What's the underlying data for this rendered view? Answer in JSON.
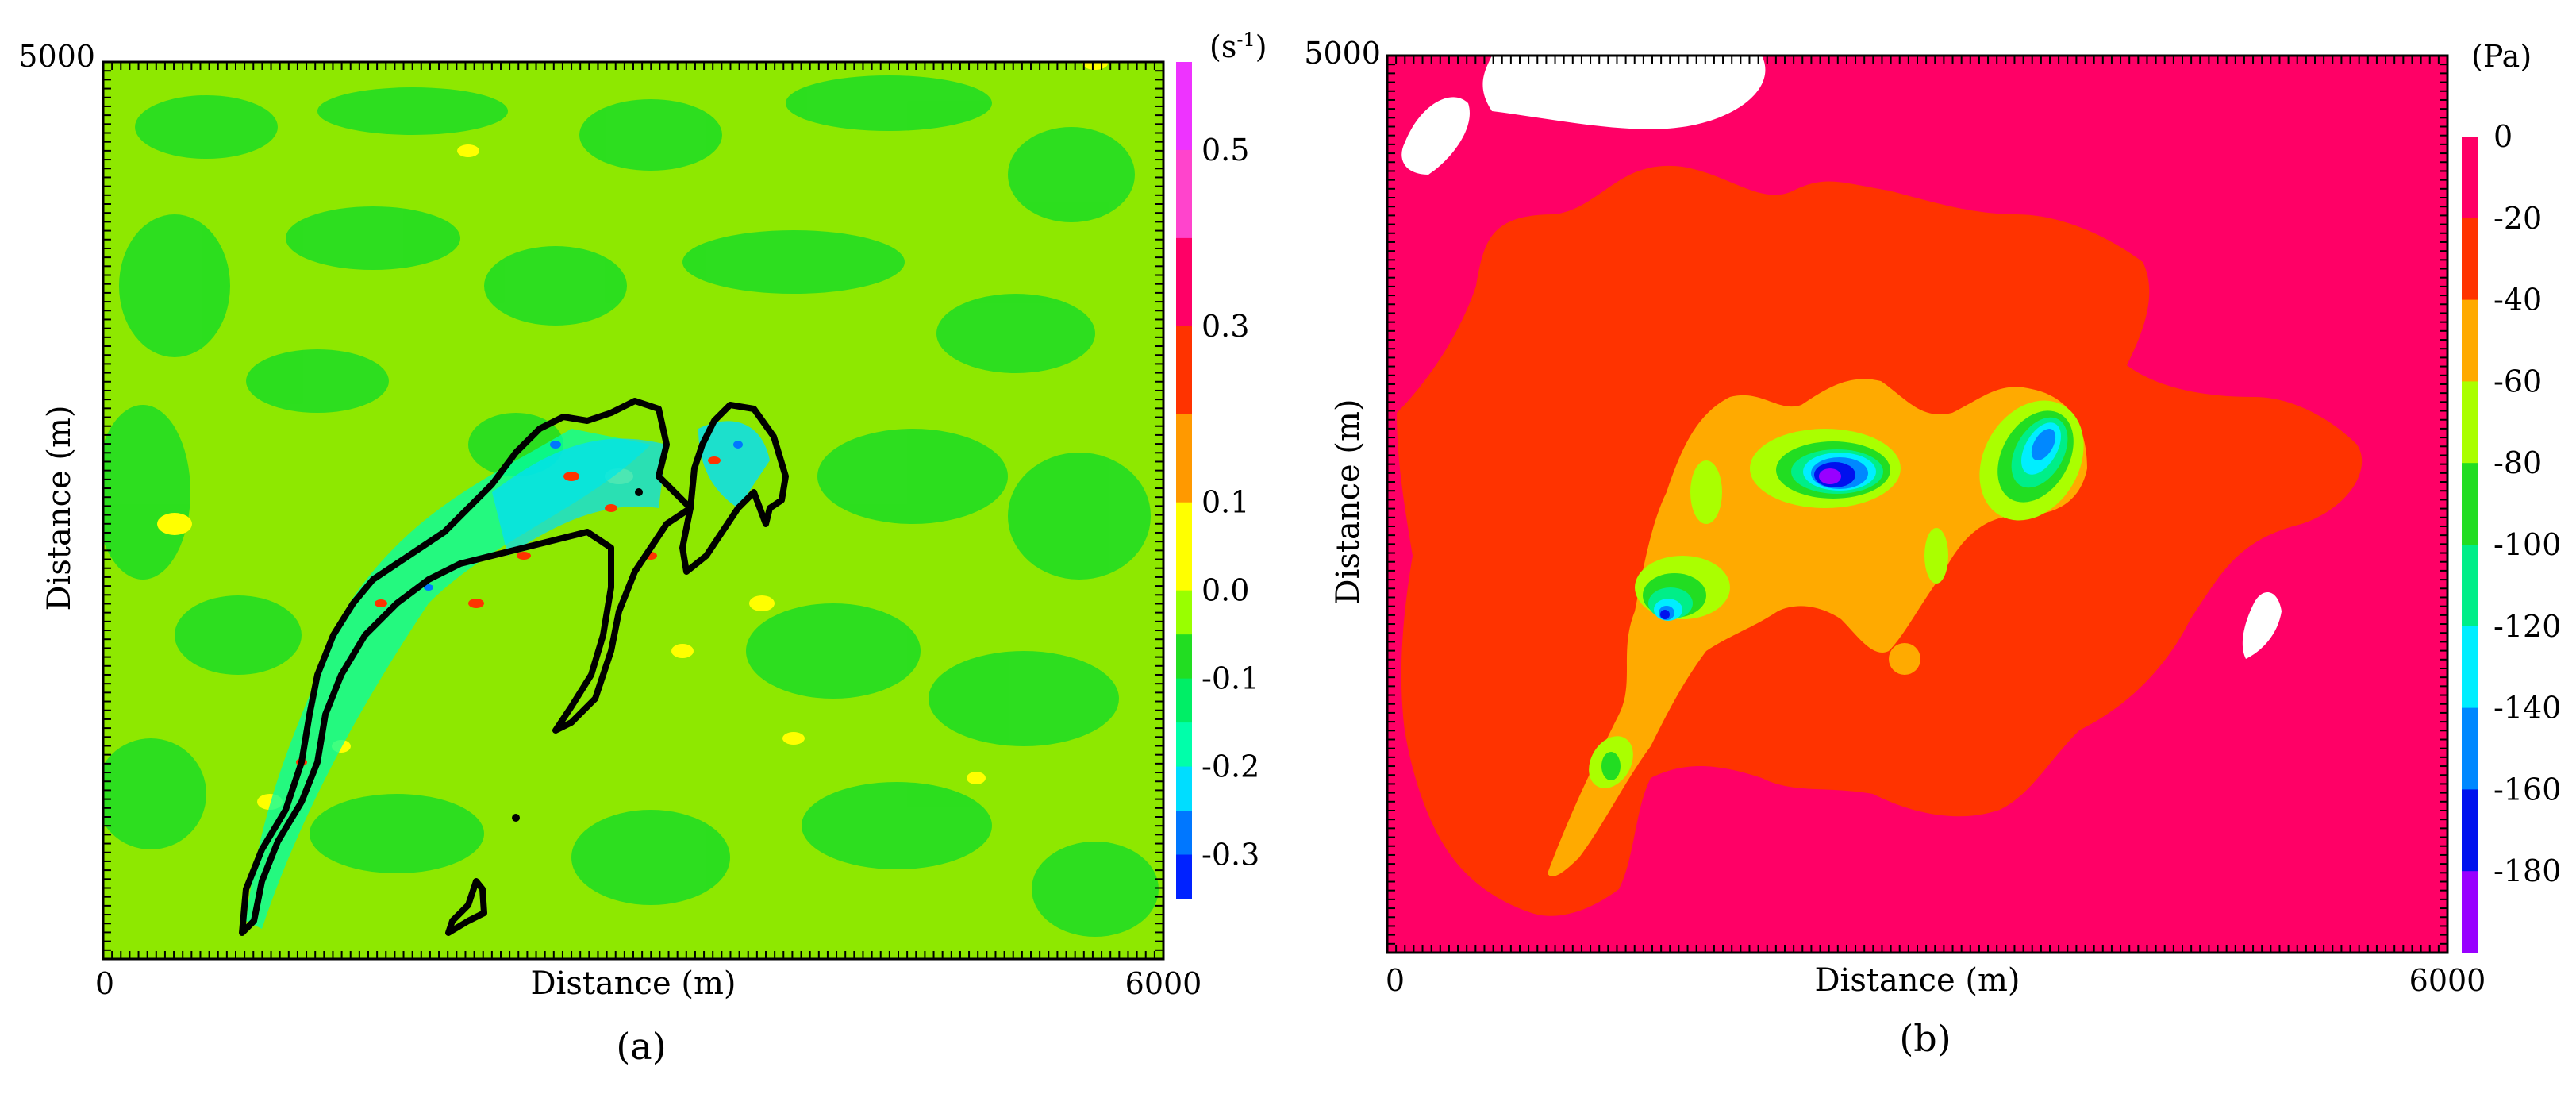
{
  "chart_data": [
    {
      "panel_label": "(a)",
      "type": "heatmap",
      "xlabel": "Distance (m)",
      "ylabel": "Distance (m)",
      "xlim": [
        0,
        6000
      ],
      "ylim": [
        0,
        5000
      ],
      "x_tick_labels": [
        "0",
        "6000"
      ],
      "y_tick_labels": [
        "5000"
      ],
      "colorbar": {
        "unit_base": "(s",
        "unit_sup": "-1",
        "unit_close": ")",
        "levels": [
          0.6,
          0.5,
          0.4,
          0.3,
          0.2,
          0.1,
          0.0,
          -0.05,
          -0.1,
          -0.15,
          -0.2,
          -0.25,
          -0.3,
          -0.35
        ],
        "colors": [
          "#ee33ff",
          "#ff44cc",
          "#ff0066",
          "#ff3300",
          "#ff9900",
          "#ffff00",
          "#99ff00",
          "#22dd22",
          "#00ee66",
          "#00ffaa",
          "#00ddff",
          "#0077ff",
          "#0022ff"
        ],
        "tick_labels": [
          "0.5",
          "0.3",
          "0.1",
          "0.0",
          "-0.1",
          "-0.2",
          "-0.3"
        ],
        "tick_values": [
          0.5,
          0.3,
          0.1,
          0.0,
          -0.1,
          -0.2,
          -0.3
        ]
      },
      "background_color": "#8ee800",
      "outline_color": "#000000"
    },
    {
      "panel_label": "(b)",
      "type": "heatmap",
      "xlabel": "Distance (m)",
      "ylabel": "Distance (m)",
      "xlim": [
        0,
        6000
      ],
      "ylim": [
        0,
        5000
      ],
      "x_tick_labels": [
        "0",
        "6000"
      ],
      "y_tick_labels": [
        "5000"
      ],
      "colorbar": {
        "unit": "(Pa)",
        "levels": [
          0,
          -20,
          -40,
          -60,
          -80,
          -100,
          -120,
          -140,
          -160,
          -180,
          -200
        ],
        "colors": [
          "#ff0066",
          "#ff3300",
          "#ffaa00",
          "#aaff00",
          "#22dd22",
          "#00ee88",
          "#00eeff",
          "#0088ff",
          "#0011ee",
          "#9900ff"
        ],
        "tick_labels": [
          "0",
          "-20",
          "-40",
          "-60",
          "-80",
          "-100",
          "-120",
          "-140",
          "-160",
          "-180"
        ],
        "tick_values": [
          0,
          -20,
          -40,
          -60,
          -80,
          -100,
          -120,
          -140,
          -160,
          -180
        ]
      },
      "background_color": "#ff0066"
    }
  ]
}
